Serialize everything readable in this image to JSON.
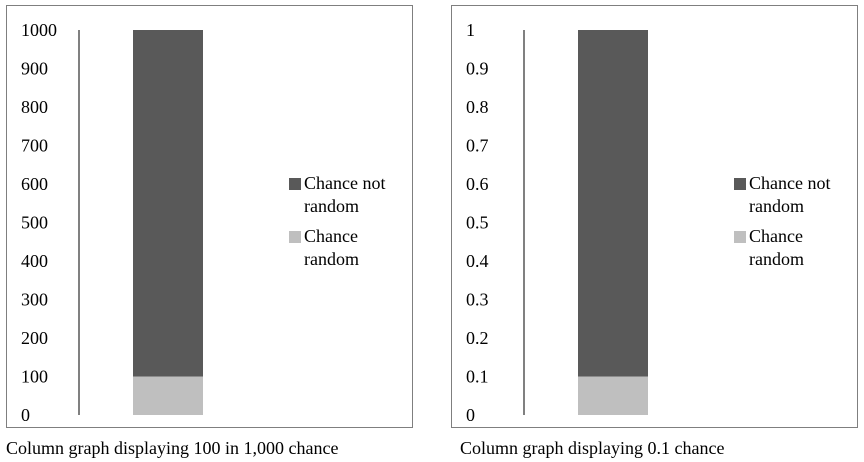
{
  "colors": {
    "not_random": "#595959",
    "random": "#bfbfbf",
    "axis": "#000000",
    "border": "#7f7f7f"
  },
  "chart_data": [
    {
      "type": "bar",
      "stacked": true,
      "categories": [
        ""
      ],
      "series": [
        {
          "name": "Chance random",
          "values": [
            100
          ],
          "color": "#bfbfbf"
        },
        {
          "name": "Chance not random",
          "values": [
            900
          ],
          "color": "#595959"
        }
      ],
      "ylim": [
        0,
        1000
      ],
      "yticks": [
        "0",
        "100",
        "200",
        "300",
        "400",
        "500",
        "600",
        "700",
        "800",
        "900",
        "1000"
      ],
      "legend": {
        "placement": "right",
        "items": [
          "Chance not random",
          "Chance random"
        ]
      },
      "grid": false,
      "caption": "Column graph displaying 100 in 1,000 chance"
    },
    {
      "type": "bar",
      "stacked": true,
      "categories": [
        ""
      ],
      "series": [
        {
          "name": "Chance random",
          "values": [
            0.1
          ],
          "color": "#bfbfbf"
        },
        {
          "name": "Chance not random",
          "values": [
            0.9
          ],
          "color": "#595959"
        }
      ],
      "ylim": [
        0,
        1
      ],
      "yticks": [
        "0",
        "0.1",
        "0.2",
        "0.3",
        "0.4",
        "0.5",
        "0.6",
        "0.7",
        "0.8",
        "0.9",
        "1"
      ],
      "legend": {
        "placement": "right",
        "items": [
          "Chance not random",
          "Chance random"
        ]
      },
      "grid": false,
      "caption": "Column graph displaying 0.1 chance"
    }
  ]
}
